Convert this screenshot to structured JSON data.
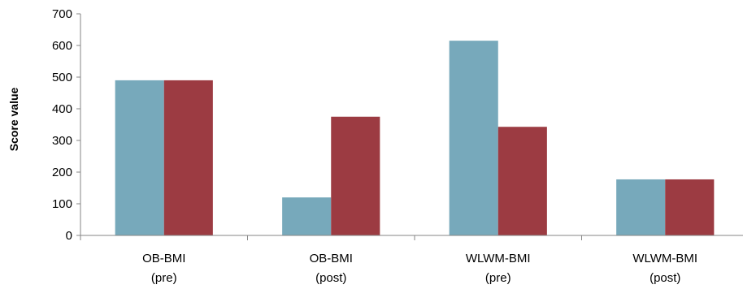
{
  "chart_data": {
    "type": "bar",
    "title": "",
    "xlabel": "",
    "ylabel": "Score value",
    "ylim": [
      0,
      700
    ],
    "yticks": [
      0,
      100,
      200,
      300,
      400,
      500,
      600,
      700
    ],
    "categories": [
      [
        "OB-BMI",
        "(pre)"
      ],
      [
        "OB-BMI",
        "(post)"
      ],
      [
        "WLWM-BMI",
        "(pre)"
      ],
      [
        "WLWM-BMI",
        "(post)"
      ]
    ],
    "series": [
      {
        "color": "#77a9bb",
        "values": [
          490,
          120,
          615,
          177
        ]
      },
      {
        "color": "#9c3b42",
        "values": [
          490,
          375,
          343,
          177
        ]
      }
    ],
    "grid": false,
    "legend": "none"
  }
}
